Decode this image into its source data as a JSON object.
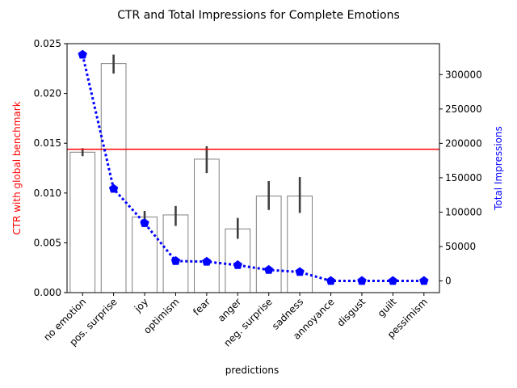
{
  "chart_data": {
    "type": "bar",
    "title": "CTR and Total Impressions for Complete Emotions",
    "xlabel": "predictions",
    "ylabel_left": "CTR with global benchmark",
    "ylabel_right": "Total Impressions",
    "colors": {
      "ylabel_left": "#ff0000",
      "ylabel_right": "#0000ff",
      "benchmark_line": "#ff0000",
      "impressions_line": "#0000ff",
      "bar_edge": "#808080",
      "error_bar": "#3f3f3f"
    },
    "categories": [
      "no emotion",
      "pos. surprise",
      "joy",
      "optimism",
      "fear",
      "anger",
      "neg. surprise",
      "sadness",
      "annoyance",
      "disgust",
      "guilt",
      "pessimism"
    ],
    "left_axis": {
      "ylim": [
        0,
        0.025
      ],
      "ticks": [
        0.0,
        0.005,
        0.01,
        0.015,
        0.02,
        0.025
      ],
      "tick_labels": [
        "0.000",
        "0.005",
        "0.010",
        "0.015",
        "0.020",
        "0.025"
      ]
    },
    "right_axis": {
      "ylim": [
        -17000,
        345000
      ],
      "ticks": [
        0,
        50000,
        100000,
        150000,
        200000,
        250000,
        300000
      ],
      "tick_labels": [
        "0",
        "50000",
        "100000",
        "150000",
        "200000",
        "250000",
        "300000"
      ]
    },
    "benchmark_ctr": 0.0144,
    "ctr_series": {
      "values": [
        0.0141,
        0.023,
        0.0076,
        0.0078,
        0.0134,
        0.0064,
        0.0097,
        0.0097,
        null,
        null,
        null,
        null
      ],
      "err_low": [
        0.0137,
        0.022,
        0.007,
        0.0067,
        0.012,
        0.0054,
        0.0083,
        0.008,
        null,
        null,
        null,
        null
      ],
      "err_high": [
        0.0145,
        0.0239,
        0.0082,
        0.0087,
        0.0147,
        0.0075,
        0.0112,
        0.0116,
        null,
        null,
        null,
        null
      ]
    },
    "impressions_series": {
      "values": [
        329000,
        134000,
        84000,
        29000,
        28000,
        23000,
        16000,
        13000,
        0,
        0,
        0,
        0
      ]
    }
  }
}
